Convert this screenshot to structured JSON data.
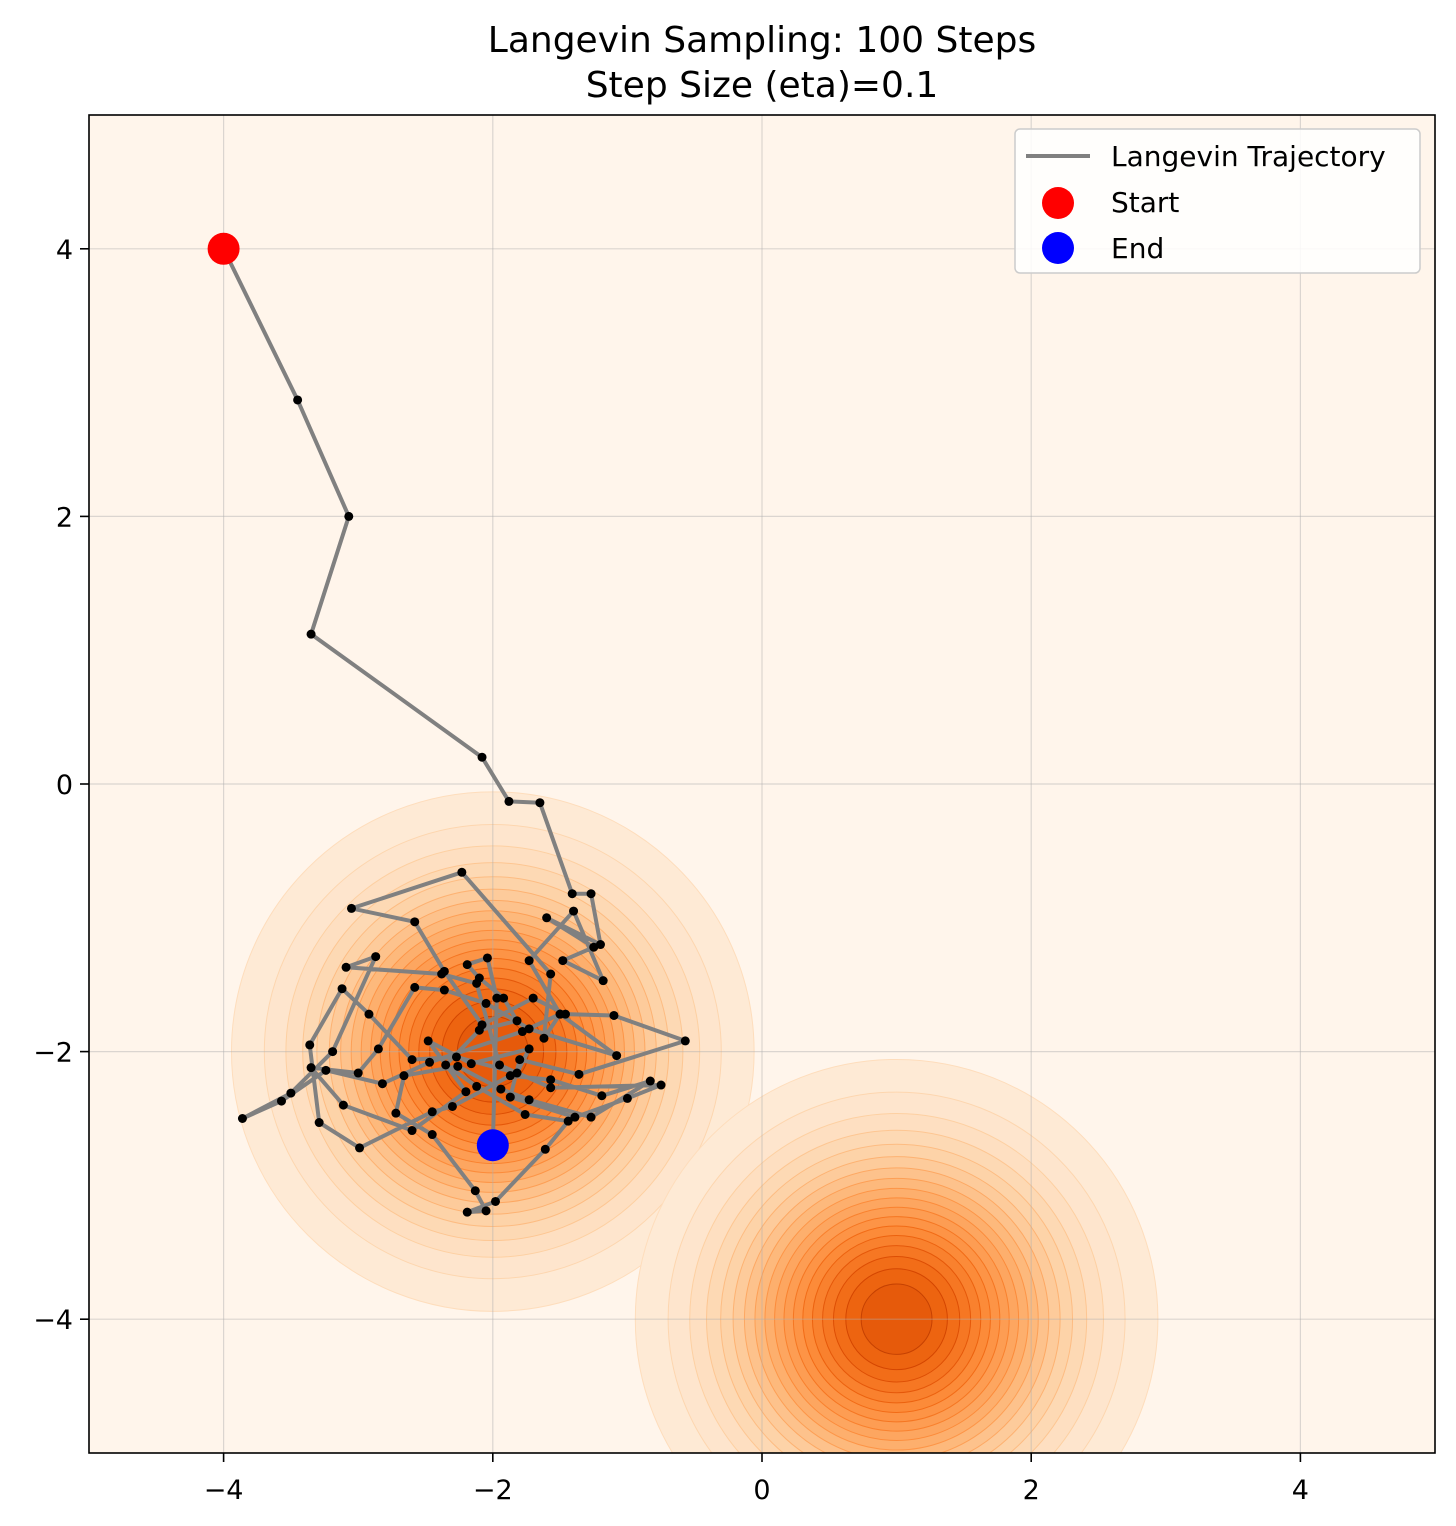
{
  "chart_data": {
    "type": "line",
    "title_line1": "Langevin Sampling: 100 Steps",
    "title_line2": "Step Size (eta)=0.1",
    "xlabel": "",
    "ylabel": "",
    "xlim": [
      -5,
      5
    ],
    "ylim": [
      -5,
      5
    ],
    "grid": true,
    "xticks": [
      -4,
      -2,
      0,
      2,
      4
    ],
    "yticks": [
      -4,
      -2,
      0,
      2,
      4
    ],
    "xtick_labels": [
      "−4",
      "−2",
      "0",
      "2",
      "4"
    ],
    "ytick_labels": [
      "−4",
      "−2",
      "0",
      "2",
      "4"
    ],
    "legend_position": "top-right",
    "legend": [
      {
        "label": "Langevin Trajectory",
        "kind": "line",
        "color": "#808080"
      },
      {
        "label": "Start",
        "kind": "marker",
        "color": "#ff0000"
      },
      {
        "label": "End",
        "kind": "marker",
        "color": "#0000ff"
      }
    ],
    "background_density": {
      "colormap": "Oranges",
      "components": [
        {
          "mean": [
            -2,
            -2
          ],
          "std": 0.8
        },
        {
          "mean": [
            1,
            -4
          ],
          "std": 0.8
        }
      ]
    },
    "start": {
      "x": -4.0,
      "y": 4.0
    },
    "end": {
      "x": -2.0,
      "y": -2.7
    },
    "trajectory": {
      "name": "Langevin Trajectory",
      "color": "#808080",
      "x": [
        -4.0,
        -3.45,
        -3.07,
        -3.35,
        -2.08,
        -1.88,
        -1.65,
        -1.41,
        -1.27,
        -1.2,
        -1.6,
        -1.25,
        -1.48,
        -1.18,
        -1.4,
        -1.73,
        -1.5,
        -1.62,
        -1.57,
        -2.23,
        -3.05,
        -2.58,
        -2.36,
        -2.08,
        -1.7,
        -1.46,
        -1.1,
        -0.57,
        -1.36,
        -1.8,
        -1.87,
        -1.39,
        -1.0,
        -0.75,
        -1.57,
        -1.95,
        -2.12,
        -2.38,
        -3.09,
        -2.87,
        -3.19,
        -3.5,
        -3.86,
        -3.57,
        -3.24,
        -2.82,
        -2.47,
        -1.78,
        -1.5,
        -1.08,
        -1.73,
        -2.05,
        -2.36,
        -2.58,
        -2.85,
        -3.0,
        -3.35,
        -3.11,
        -2.6,
        -2.2,
        -2.48,
        -2.16,
        -1.73,
        -1.82,
        -2.27,
        -2.6,
        -2.92,
        -3.12,
        -3.36,
        -3.29,
        -2.99,
        -2.45,
        -2.3,
        -1.87,
        -1.57,
        -1.19,
        -0.83,
        -1.27,
        -1.73,
        -1.94,
        -2.26,
        -2.66,
        -2.72,
        -2.45,
        -2.13,
        -2.05,
        -2.19,
        -1.98,
        -1.61,
        -1.44,
        -1.76,
        -2.12,
        -2.35,
        -2.1,
        -1.82,
        -1.92,
        -2.1,
        -2.19,
        -2.04,
        -1.97,
        -2.0
      ],
      "y": [
        4.0,
        2.87,
        2.0,
        1.12,
        0.2,
        -0.13,
        -0.14,
        -0.82,
        -0.82,
        -1.2,
        -1.0,
        -1.22,
        -1.32,
        -1.47,
        -0.95,
        -1.32,
        -1.72,
        -1.9,
        -1.42,
        -0.66,
        -0.93,
        -1.03,
        -1.4,
        -1.8,
        -1.6,
        -1.72,
        -1.73,
        -1.92,
        -2.17,
        -2.06,
        -2.34,
        -2.49,
        -2.35,
        -2.25,
        -2.27,
        -2.1,
        -1.49,
        -1.42,
        -1.37,
        -1.29,
        -2.0,
        -2.31,
        -2.5,
        -2.37,
        -2.14,
        -2.24,
        -2.08,
        -1.85,
        -1.72,
        -2.03,
        -1.83,
        -1.64,
        -1.54,
        -1.52,
        -1.98,
        -2.16,
        -2.12,
        -2.4,
        -2.59,
        -2.3,
        -1.92,
        -2.09,
        -1.98,
        -2.16,
        -2.04,
        -2.06,
        -1.72,
        -1.53,
        -1.95,
        -2.53,
        -2.72,
        -2.45,
        -2.41,
        -2.18,
        -2.21,
        -2.33,
        -2.22,
        -2.49,
        -2.36,
        -2.28,
        -2.11,
        -2.18,
        -2.46,
        -2.62,
        -3.04,
        -3.19,
        -3.2,
        -3.12,
        -2.73,
        -2.52,
        -2.47,
        -2.26,
        -2.1,
        -1.84,
        -1.77,
        -1.6,
        -1.45,
        -1.35,
        -1.3,
        -1.6,
        -2.7
      ]
    }
  }
}
